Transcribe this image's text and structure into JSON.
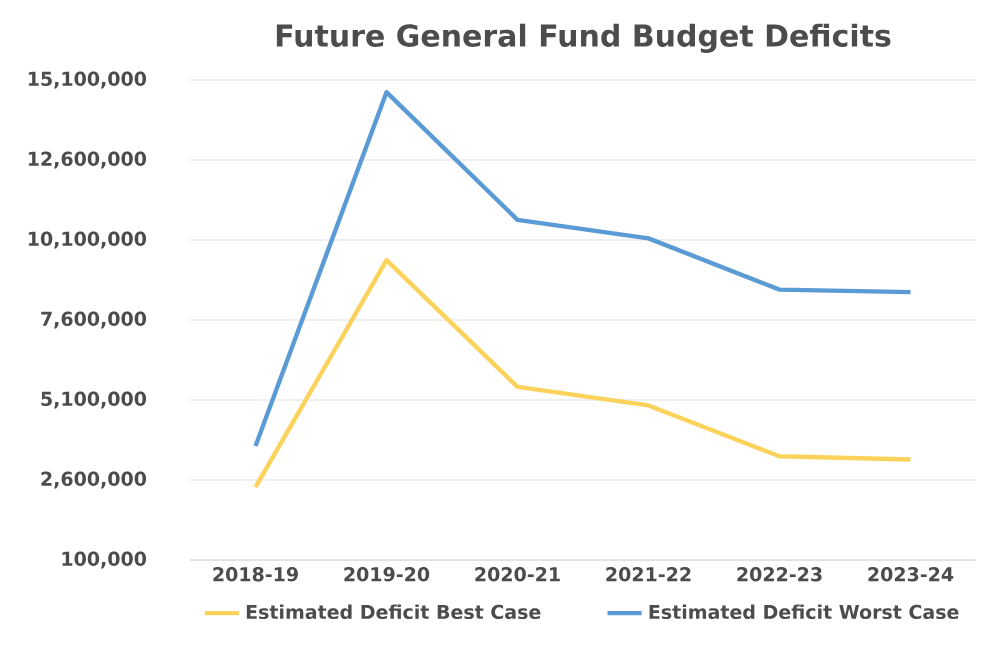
{
  "chart_data": {
    "type": "line",
    "title": "Future General Fund Budget Deficits",
    "categories": [
      "2018-19",
      "2019-20",
      "2020-21",
      "2021-22",
      "2022-23",
      "2023-24"
    ],
    "series": [
      {
        "name": "Estimated Deficit Best Case",
        "color": "#fbd35c",
        "values": [
          2380000,
          9470000,
          5510000,
          4930000,
          3340000,
          3240000
        ]
      },
      {
        "name": "Estimated Deficit Worst Case",
        "color": "#5b9bd5",
        "values": [
          3660000,
          14720000,
          10730000,
          10150000,
          8550000,
          8470000
        ]
      }
    ],
    "ylim": [
      100000,
      15100000
    ],
    "yticks": [
      {
        "value": 100000,
        "label": "100,000"
      },
      {
        "value": 2600000,
        "label": "2,600,000"
      },
      {
        "value": 5100000,
        "label": "5,100,000"
      },
      {
        "value": 7600000,
        "label": "7,600,000"
      },
      {
        "value": 10100000,
        "label": "10,100,000"
      },
      {
        "value": 12600000,
        "label": "12,600,000"
      },
      {
        "value": 15100000,
        "label": "15,100,000"
      }
    ],
    "grid": "y",
    "legend": "bottom",
    "marker": "none",
    "line_style": "solid"
  }
}
